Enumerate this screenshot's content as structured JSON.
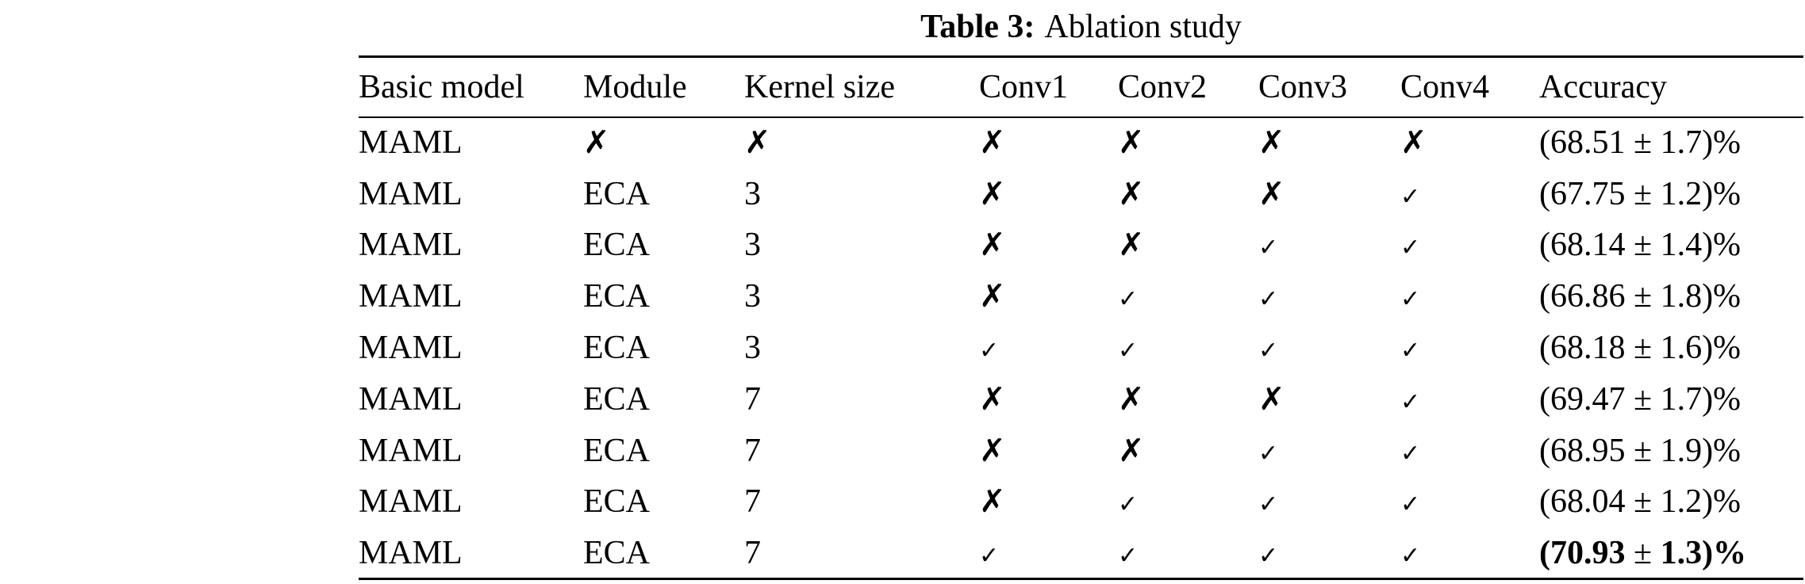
{
  "caption": {
    "label": "Table 3:",
    "text": "Ablation study"
  },
  "table": {
    "headers": [
      "Basic model",
      "Module",
      "Kernel size",
      "Conv1",
      "Conv2",
      "Conv3",
      "Conv4",
      "Accuracy"
    ],
    "rows": [
      {
        "model": "MAML",
        "module": "✗",
        "kernel": "✗",
        "conv": [
          "✗",
          "✗",
          "✗",
          "✗"
        ],
        "acc_mean": "(68.51",
        "pm": "±",
        "acc_std": "1.7)%",
        "bold": false
      },
      {
        "model": "MAML",
        "module": "ECA",
        "kernel": "3",
        "conv": [
          "✗",
          "✗",
          "✗",
          "✓"
        ],
        "acc_mean": "(67.75",
        "pm": "±",
        "acc_std": "1.2)%",
        "bold": false
      },
      {
        "model": "MAML",
        "module": "ECA",
        "kernel": "3",
        "conv": [
          "✗",
          "✗",
          "✓",
          "✓"
        ],
        "acc_mean": "(68.14",
        "pm": "±",
        "acc_std": "1.4)%",
        "bold": false
      },
      {
        "model": "MAML",
        "module": "ECA",
        "kernel": "3",
        "conv": [
          "✗",
          "✓",
          "✓",
          "✓"
        ],
        "acc_mean": "(66.86",
        "pm": "±",
        "acc_std": "1.8)%",
        "bold": false
      },
      {
        "model": "MAML",
        "module": "ECA",
        "kernel": "3",
        "conv": [
          "✓",
          "✓",
          "✓",
          "✓"
        ],
        "acc_mean": "(68.18",
        "pm": "±",
        "acc_std": "1.6)%",
        "bold": false
      },
      {
        "model": "MAML",
        "module": "ECA",
        "kernel": "7",
        "conv": [
          "✗",
          "✗",
          "✗",
          "✓"
        ],
        "acc_mean": "(69.47",
        "pm": "±",
        "acc_std": "1.7)%",
        "bold": false
      },
      {
        "model": "MAML",
        "module": "ECA",
        "kernel": "7",
        "conv": [
          "✗",
          "✗",
          "✓",
          "✓"
        ],
        "acc_mean": "(68.95",
        "pm": "±",
        "acc_std": "1.9)%",
        "bold": false
      },
      {
        "model": "MAML",
        "module": "ECA",
        "kernel": "7",
        "conv": [
          "✗",
          "✓",
          "✓",
          "✓"
        ],
        "acc_mean": "(68.04",
        "pm": "±",
        "acc_std": "1.2)%",
        "bold": false
      },
      {
        "model": "MAML",
        "module": "ECA",
        "kernel": "7",
        "conv": [
          "✓",
          "✓",
          "✓",
          "✓"
        ],
        "acc_mean": "(70.93",
        "pm": "±",
        "acc_std": "1.3)%",
        "bold": true
      }
    ]
  }
}
